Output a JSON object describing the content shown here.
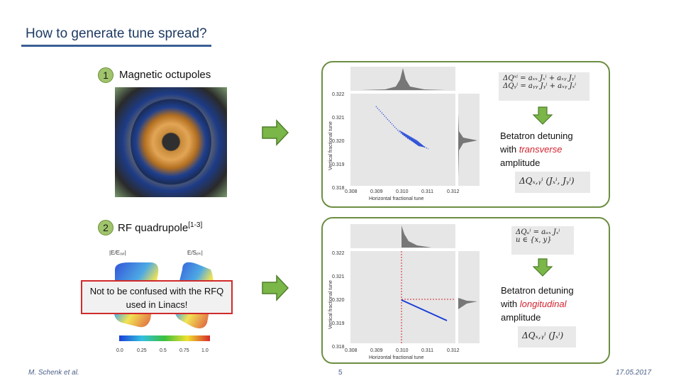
{
  "slide": {
    "title": "How to generate tune spread?",
    "section1": {
      "number": "1",
      "label": "Magnetic octupoles"
    },
    "section2": {
      "number": "2",
      "label": "RF quadrupole",
      "ref": "[1-3]"
    }
  },
  "rfq_figure": {
    "label_left": "|E/E₀ₚ|",
    "label_right": "E/Sₚₖ|",
    "colorbar_ticks": [
      "0.0",
      "0.25",
      "0.5",
      "0.75",
      "1.0"
    ]
  },
  "callout": {
    "text": "Not to be confused with the RFQ used in Linacs!"
  },
  "panel1": {
    "formula_lines": [
      "ΔQˣⁱ = aₓₓ Jₓⁱ + aₓᵧ Jᵧⁱ",
      "ΔQᵧⁱ = aᵧᵧ Jᵧⁱ + aₓᵧ Jₓⁱ"
    ],
    "detuning_line1": "Betatron detuning",
    "detuning_with": "with ",
    "detuning_kind": "transverse",
    "detuning_line3": "amplitude",
    "formula_bottom": "ΔQₓ,ᵧⁱ (Jₓⁱ, Jᵧⁱ)",
    "plot": {
      "xlabel": "Horizontal fractional tune",
      "ylabel": "Vertical fractional tune",
      "xticks": [
        "0.308",
        "0.309",
        "0.310",
        "0.311",
        "0.312"
      ],
      "yticks": [
        "0.322",
        "0.321",
        "0.320",
        "0.319",
        "0.318"
      ]
    }
  },
  "panel2": {
    "formula_lines": [
      "ΔQᵤⁱ = aᵤₓ Jₓⁱ",
      "u ∈ {x, y}"
    ],
    "detuning_line1": "Betatron detuning",
    "detuning_with": "with ",
    "detuning_kind": "longitudinal",
    "detuning_line3": "amplitude",
    "formula_bottom": "ΔQₓ,ᵧⁱ (Jₓⁱ)",
    "plot": {
      "xlabel": "Horizontal fractional tune",
      "ylabel": "Vertical fractional tune",
      "xticks": [
        "0.308",
        "0.309",
        "0.310",
        "0.311",
        "0.312"
      ],
      "yticks": [
        "0.322",
        "0.321",
        "0.320",
        "0.319",
        "0.318"
      ]
    }
  },
  "footer": {
    "author": "M. Schenk et al.",
    "page": "5",
    "date": "17.05.2017"
  },
  "colors": {
    "title": "#1f3b63",
    "panel_border": "#6c8e42",
    "arrow": "#7ab648",
    "red": "#d1242f",
    "scatter": "#1a3fd6"
  }
}
